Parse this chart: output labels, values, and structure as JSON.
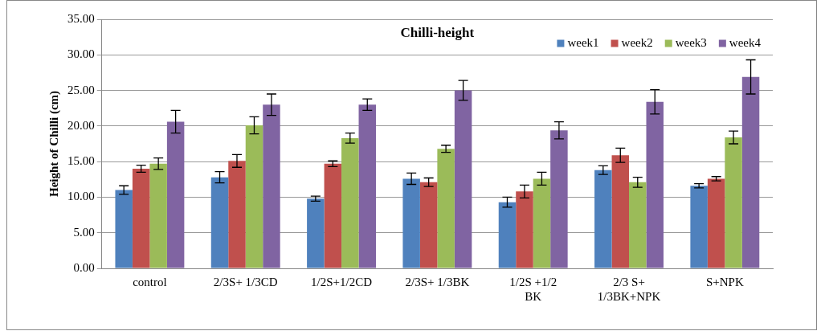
{
  "chart_data": {
    "type": "bar",
    "title": "Chilli-height",
    "ylabel": "Height of Chilli (cm)",
    "categories": [
      "control",
      "2/3S+ 1/3CD",
      "1/2S+1/2CD",
      "2/3S+ 1/3BK",
      "1/2S +1/2 BK",
      "2/3 S+ 1/3BK+NPK",
      "S+NPK"
    ],
    "series": [
      {
        "name": "week1",
        "color": "#4f81bd",
        "values": [
          11.0,
          12.8,
          9.8,
          12.6,
          9.3,
          13.8,
          11.6
        ],
        "errors": [
          0.6,
          0.8,
          0.35,
          0.8,
          0.7,
          0.6,
          0.3
        ]
      },
      {
        "name": "week2",
        "color": "#c0504d",
        "values": [
          14.0,
          15.1,
          14.7,
          12.1,
          10.8,
          15.9,
          12.6
        ],
        "errors": [
          0.5,
          0.9,
          0.4,
          0.6,
          0.9,
          1.0,
          0.3
        ]
      },
      {
        "name": "week3",
        "color": "#9bbb59",
        "values": [
          14.7,
          20.1,
          18.3,
          16.8,
          12.6,
          12.1,
          18.4
        ],
        "errors": [
          0.8,
          1.2,
          0.7,
          0.5,
          0.9,
          0.7,
          0.9
        ]
      },
      {
        "name": "week4",
        "color": "#8064a2",
        "values": [
          20.6,
          23.0,
          23.0,
          25.0,
          19.4,
          23.4,
          26.9
        ],
        "errors": [
          1.6,
          1.5,
          0.8,
          1.4,
          1.2,
          1.7,
          2.4
        ]
      }
    ],
    "ylim": [
      0,
      35
    ],
    "yticks": [
      {
        "value": 0,
        "label": "0.00"
      },
      {
        "value": 5,
        "label": "5.00"
      },
      {
        "value": 10,
        "label": "10.00"
      },
      {
        "value": 15,
        "label": "15.00"
      },
      {
        "value": 20,
        "label": "20.00"
      },
      {
        "value": 25,
        "label": "25.00"
      },
      {
        "value": 30,
        "label": "30.00"
      },
      {
        "value": 35,
        "label": "35.00"
      }
    ],
    "grid": "y",
    "legend": "top right"
  }
}
